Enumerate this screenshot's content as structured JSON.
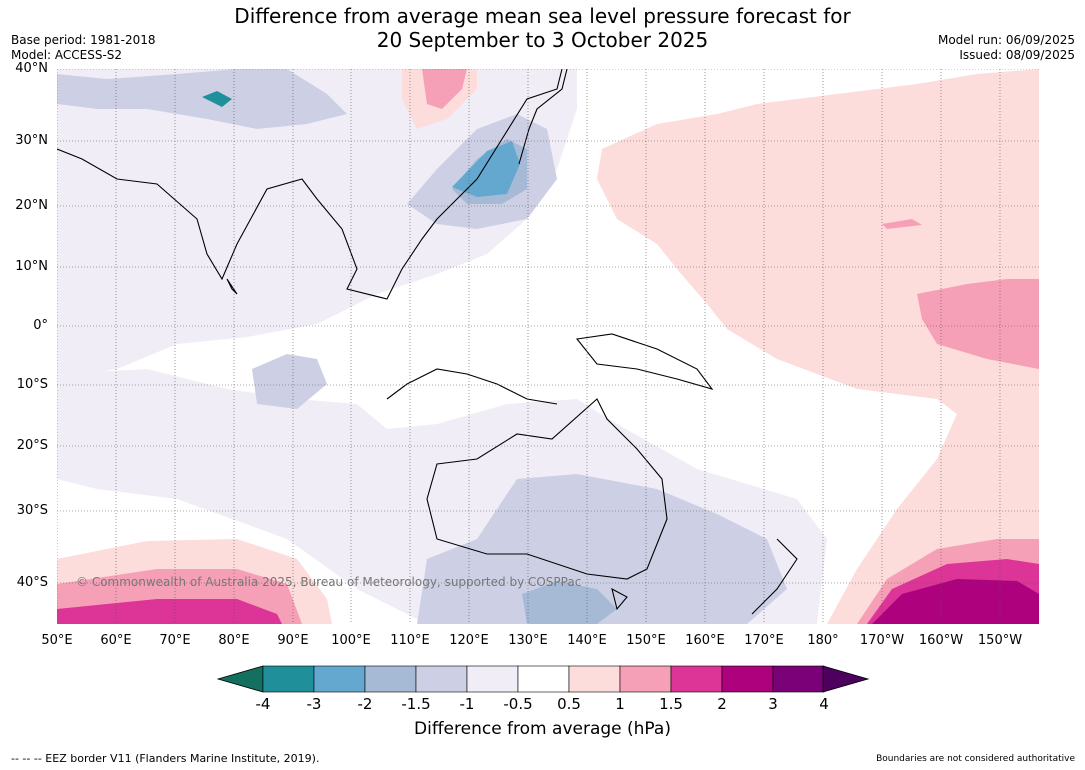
{
  "title": {
    "line1": "Difference from average mean sea level pressure forecast for",
    "line2": "20 September to 3 October 2025"
  },
  "meta": {
    "base_period": "Base period: 1981-2018",
    "model": "Model: ACCESS-S2",
    "model_run": "Model run: 06/09/2025",
    "issued": "Issued: 08/09/2025"
  },
  "map": {
    "lat_labels": [
      "40°N",
      "30°N",
      "20°N",
      "10°N",
      "0°",
      "10°S",
      "20°S",
      "30°S",
      "40°S"
    ],
    "lon_labels": [
      "50°E",
      "60°E",
      "70°E",
      "80°E",
      "90°E",
      "100°E",
      "110°E",
      "120°E",
      "130°E",
      "140°E",
      "150°E",
      "160°E",
      "170°E",
      "180°",
      "170°W",
      "160°W",
      "150°W"
    ],
    "copyright": "© Commonwealth of Australia 2025, Bureau of Meteorology, supported by COSPPac"
  },
  "colorbar": {
    "ticks": [
      "-4",
      "-3",
      "-2",
      "-1.5",
      "-1",
      "-0.5",
      "0.5",
      "1",
      "1.5",
      "2",
      "3",
      "4"
    ],
    "colors": [
      "#137060",
      "#1f9099",
      "#65a8cf",
      "#a6bad6",
      "#cdd0e5",
      "#f1edf6",
      "#ffffff",
      "#fddcdc",
      "#f6a0b8",
      "#dd3497",
      "#ae017e",
      "#7a0177",
      "#4d005e"
    ],
    "label": "Difference from average (hPa)"
  },
  "footer": {
    "eez": "--  --  -- EEZ border V11 (Flanders Marine Institute, 2019).",
    "disclaimer": "Boundaries are not considered authoritative"
  }
}
